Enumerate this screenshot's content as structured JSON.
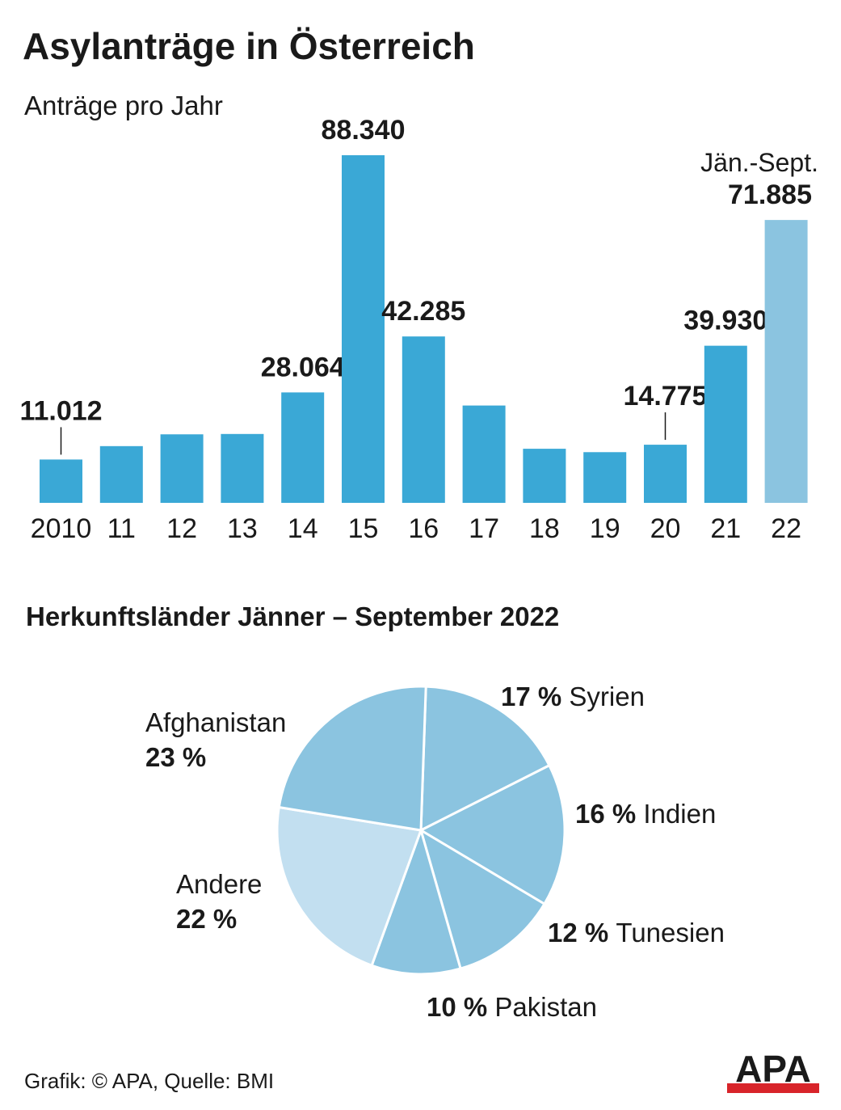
{
  "header": {
    "title": "Asylanträge in Österreich",
    "subtitle": "Anträge pro Jahr"
  },
  "pie_title": "Herkunftsländer Jänner – September 2022",
  "footer": {
    "source": "Grafik: © APA, Quelle: BMI",
    "logo_text": "APA"
  },
  "colors": {
    "bar": "#3aa8d6",
    "bar_partial": "#8bc4e0",
    "pie_main": "#8bc4e0",
    "pie_other": "#c2dff0",
    "logo": "#d8242a"
  },
  "chart_data": [
    {
      "type": "bar",
      "categories": [
        "2010",
        "11",
        "12",
        "13",
        "14",
        "15",
        "16",
        "17",
        "18",
        "19",
        "20",
        "21",
        "22"
      ],
      "values": [
        11012,
        14416,
        17413,
        17503,
        28064,
        88340,
        42285,
        24735,
        13746,
        12886,
        14775,
        39930,
        71885
      ],
      "labels": [
        "11.012",
        "",
        "",
        "",
        "28.064",
        "88.340",
        "42.285",
        "",
        "",
        "",
        "14.775",
        "39.930",
        "71.885"
      ],
      "notes": [
        "",
        "",
        "",
        "",
        "",
        "",
        "",
        "",
        "",
        "",
        "",
        "",
        "Jän.-Sept."
      ],
      "partial_index": 12,
      "title": "Asylanträge in Österreich",
      "subtitle": "Anträge pro Jahr",
      "ylim": [
        0,
        88340
      ]
    },
    {
      "type": "pie",
      "title": "Herkunftsländer Jänner – September 2022",
      "slices": [
        {
          "name": "Syrien",
          "value": 17,
          "pct": "17 %"
        },
        {
          "name": "Indien",
          "value": 16,
          "pct": "16 %"
        },
        {
          "name": "Tunesien",
          "value": 12,
          "pct": "12 %"
        },
        {
          "name": "Pakistan",
          "value": 10,
          "pct": "10 %"
        },
        {
          "name": "Andere",
          "value": 22,
          "pct": "22 %"
        },
        {
          "name": "Afghanistan",
          "value": 23,
          "pct": "23 %"
        }
      ]
    }
  ]
}
